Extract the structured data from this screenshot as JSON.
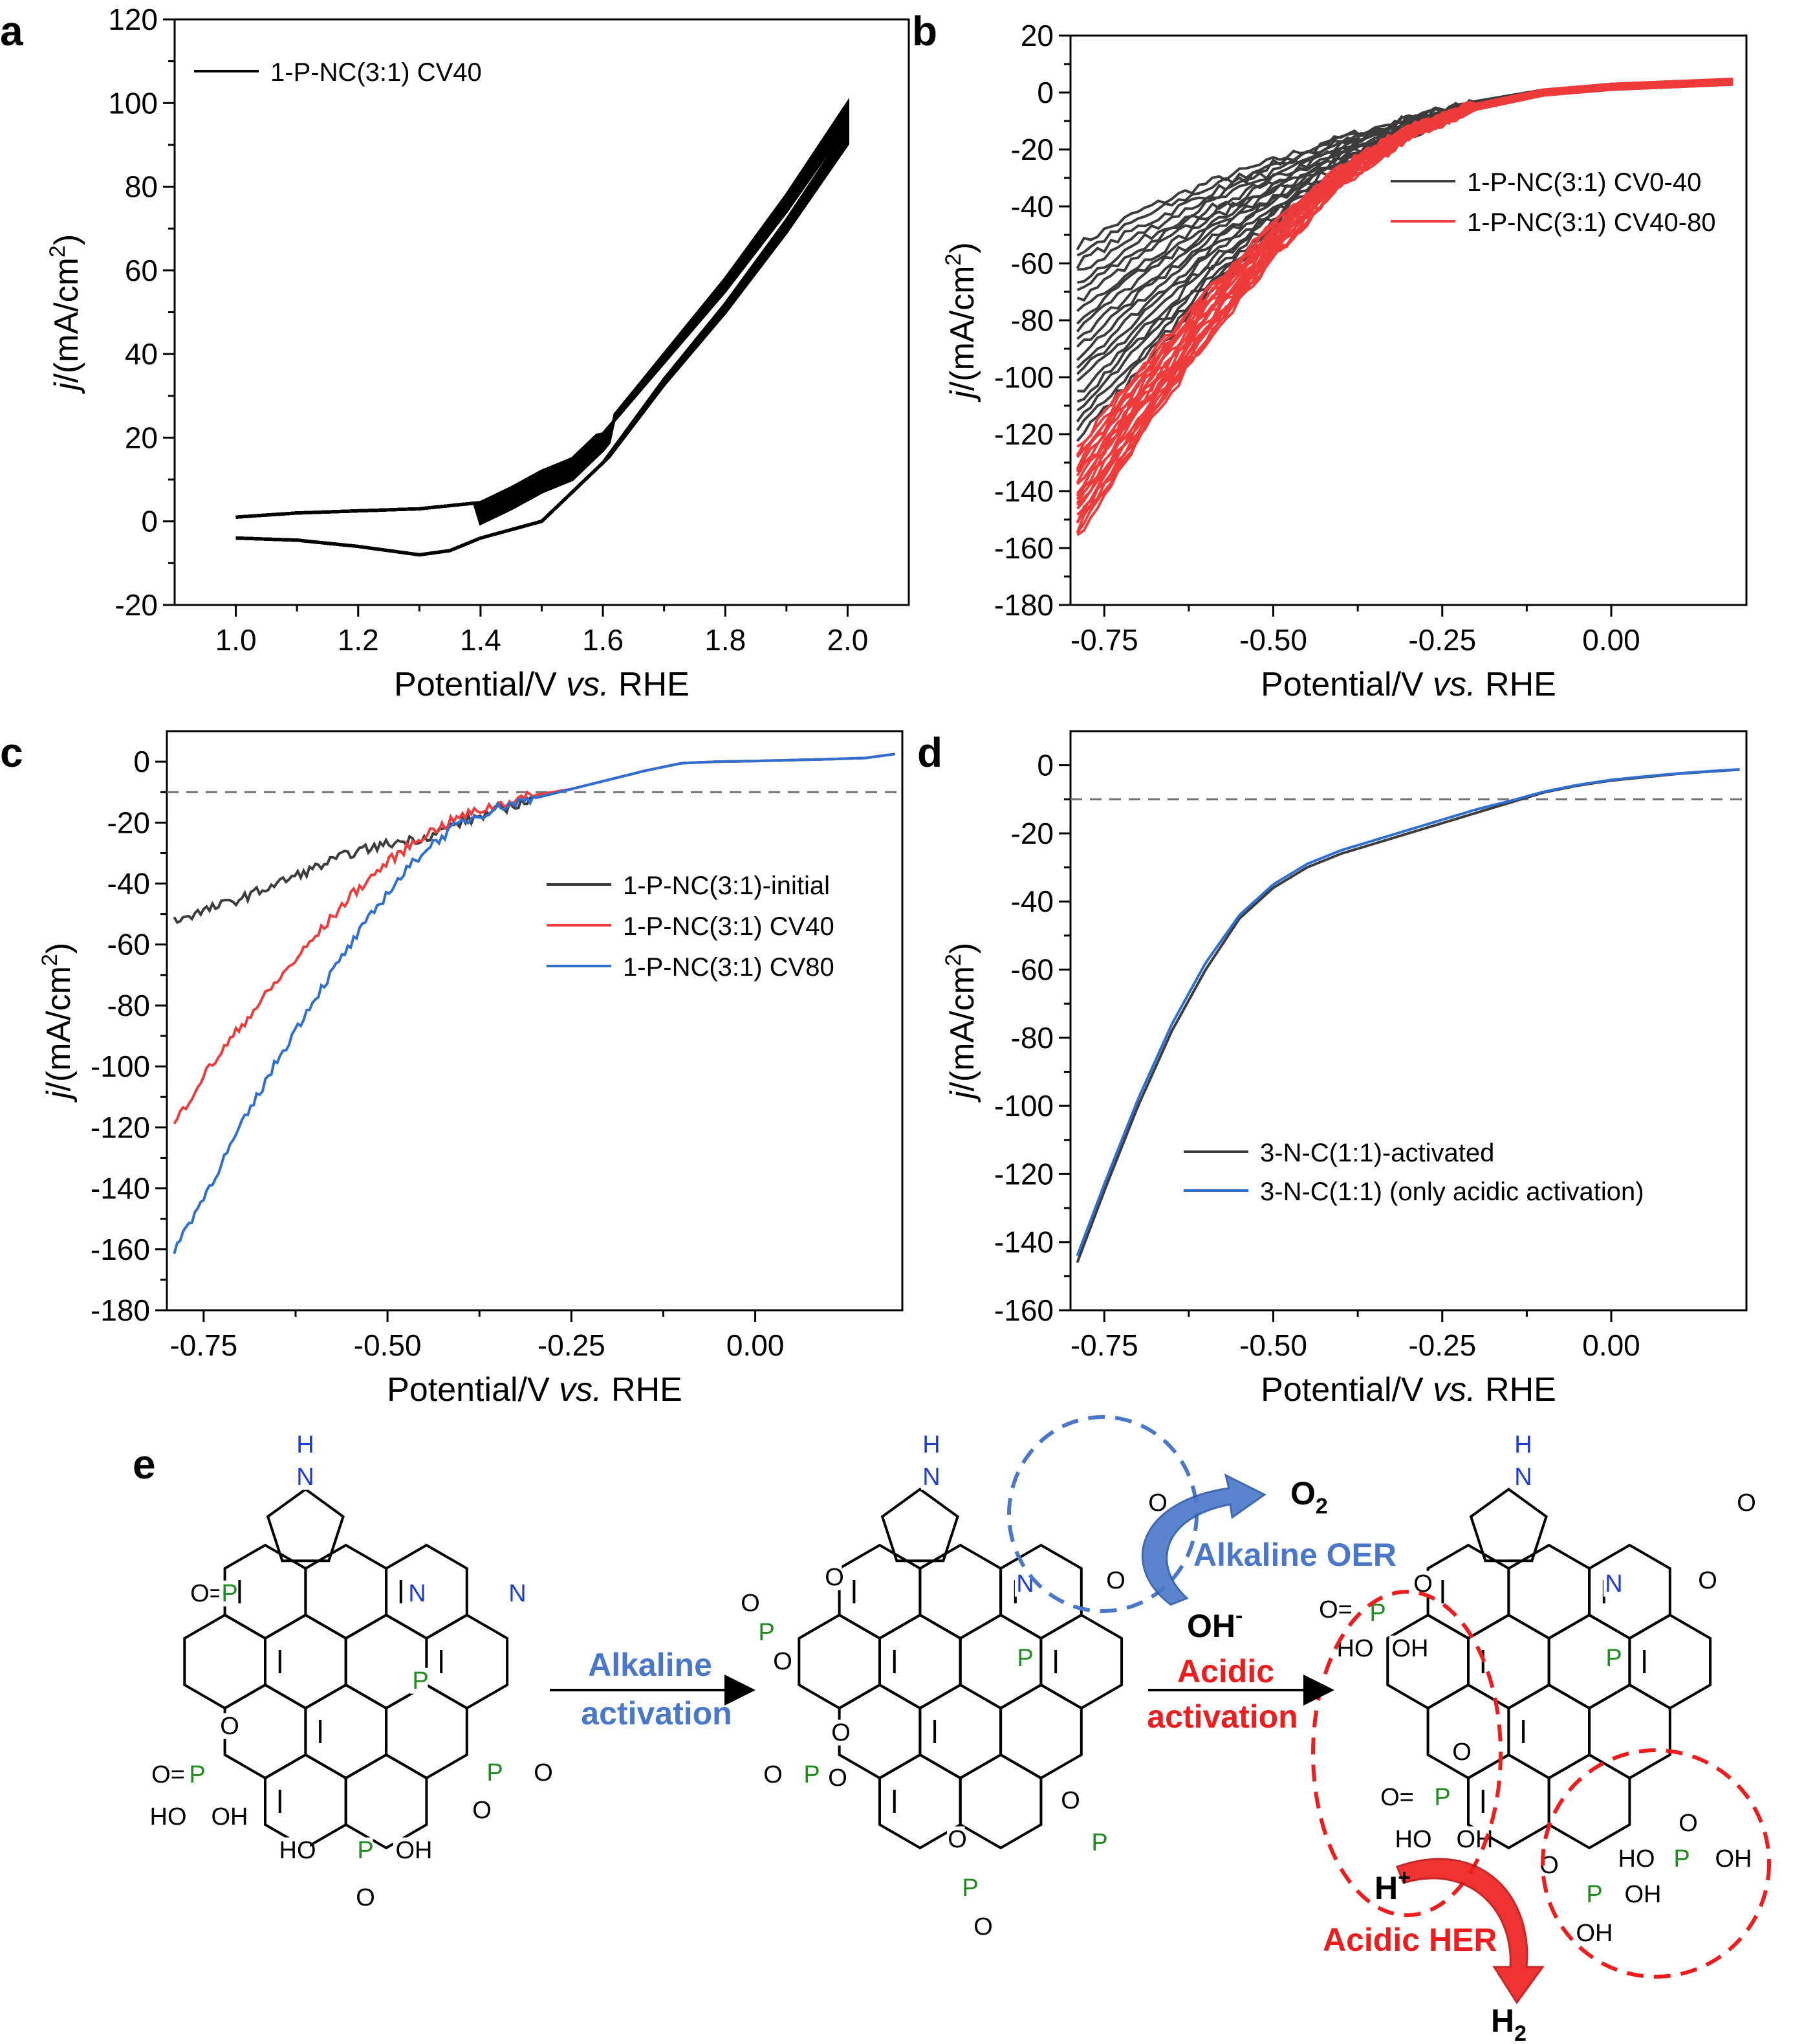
{
  "figure": {
    "panel_labels": [
      "a",
      "b",
      "c",
      "d",
      "e"
    ],
    "colors": {
      "black": "#000000",
      "dark_gray": "#3c3c3c",
      "red": "#ee3b3b",
      "blue": "#2f6fd0",
      "green": "#1e8c1e",
      "n_blue": "#1d3cd6",
      "alk_blue": "#4a77c9",
      "acid_red": "#ee1c1c",
      "dashed_gray": "#707070"
    }
  },
  "chart_data": [
    {
      "panel": "a",
      "type": "line",
      "xlabel": "Potential/V vs. RHE",
      "xlabel_parts": [
        "Potential/V ",
        "vs.",
        " RHE"
      ],
      "ylabel_parts": [
        "j",
        "/(mA/cm",
        "2",
        ")"
      ],
      "xlim": [
        0.9,
        2.1
      ],
      "ylim": [
        -20,
        120
      ],
      "xticks": [
        1.0,
        1.2,
        1.4,
        1.6,
        1.8,
        2.0
      ],
      "xtick_labels": [
        "1.0",
        "1.2",
        "1.4",
        "1.6",
        "1.8",
        "2.0"
      ],
      "yticks": [
        -20,
        0,
        20,
        40,
        60,
        80,
        100,
        120
      ],
      "ytick_labels": [
        "-20",
        "0",
        "20",
        "40",
        "60",
        "80",
        "100",
        "120"
      ],
      "legend": [
        {
          "label": "1-P-NC(3:1) CV40",
          "color": "#000000"
        }
      ],
      "legend_position": "top-left",
      "series": [
        {
          "name": "1-P-NC(3:1) CV40",
          "color": "#000000",
          "anodic": {
            "x": [
              1.0,
              1.1,
              1.2,
              1.3,
              1.4,
              1.45,
              1.5,
              1.55,
              1.6,
              1.7,
              1.8,
              1.9,
              2.0
            ],
            "y": [
              1,
              2,
              2.5,
              3,
              4.5,
              8,
              12,
              15,
              22,
              40,
              58,
              78,
              100
            ]
          },
          "cathodic": {
            "x": [
              2.0,
              1.9,
              1.8,
              1.7,
              1.6,
              1.5,
              1.4,
              1.35,
              1.3,
              1.2,
              1.1,
              1.0
            ],
            "y": [
              94,
              72,
              52,
              34,
              14,
              0,
              -4,
              -7,
              -8,
              -6,
              -4.5,
              -4
            ]
          }
        }
      ]
    },
    {
      "panel": "b",
      "type": "line",
      "xlabel": "Potential/V vs. RHE",
      "xlabel_parts": [
        "Potential/V ",
        "vs.",
        " RHE"
      ],
      "ylabel_parts": [
        "j",
        "/(mA/cm",
        "2",
        ")"
      ],
      "xlim": [
        -0.8,
        0.2
      ],
      "ylim": [
        -180,
        20
      ],
      "xticks": [
        -0.75,
        -0.5,
        -0.25,
        0.0
      ],
      "xtick_labels": [
        "-0.75",
        "-0.50",
        "-0.25",
        "0.00"
      ],
      "yticks": [
        -180,
        -160,
        -140,
        -120,
        -100,
        -80,
        -60,
        -40,
        -20,
        0,
        20
      ],
      "ytick_labels": [
        "-180",
        "-160",
        "-140",
        "-120",
        "-100",
        "-80",
        "-60",
        "-40",
        "-20",
        "0",
        "20"
      ],
      "legend": [
        {
          "label": "1-P-NC(3:1) CV0-40",
          "color": "#3c3c3c"
        },
        {
          "label": "1-P-NC(3:1) CV40-80",
          "color": "#ee3b3b"
        }
      ],
      "legend_position": "center-right",
      "series": [
        {
          "name": "1-P-NC(3:1) CV0-40",
          "color": "#3c3c3c",
          "x": [
            -0.8,
            -0.7,
            -0.6,
            -0.5,
            -0.4,
            -0.3,
            -0.2,
            -0.1,
            0.0,
            0.1,
            0.2
          ],
          "y_upper": [
            -55,
            -42,
            -32,
            -24,
            -16,
            -9,
            -3,
            1,
            3,
            4,
            4
          ],
          "y_lower": [
            -125,
            -98,
            -72,
            -50,
            -30,
            -15,
            -6,
            -1,
            1,
            2,
            3
          ]
        },
        {
          "name": "1-P-NC(3:1) CV40-80",
          "color": "#ee3b3b",
          "x": [
            -0.8,
            -0.7,
            -0.6,
            -0.5,
            -0.4,
            -0.3,
            -0.2,
            -0.1,
            0.0,
            0.1,
            0.2
          ],
          "y_upper": [
            -128,
            -98,
            -70,
            -46,
            -26,
            -12,
            -4,
            1,
            3,
            4,
            5
          ],
          "y_lower": [
            -160,
            -122,
            -88,
            -58,
            -33,
            -16,
            -6,
            -1,
            1,
            2,
            3
          ]
        }
      ]
    },
    {
      "panel": "c",
      "type": "line",
      "xlabel": "Potential/V vs. RHE",
      "xlabel_parts": [
        "Potential/V ",
        "vs.",
        " RHE"
      ],
      "ylabel_parts": [
        "j",
        "/(mA/cm",
        "2",
        ")"
      ],
      "xlim": [
        -0.8,
        0.2
      ],
      "ylim": [
        -180,
        10
      ],
      "xticks": [
        -0.75,
        -0.5,
        -0.25,
        0.0
      ],
      "xtick_labels": [
        "-0.75",
        "-0.50",
        "-0.25",
        "0.00"
      ],
      "yticks": [
        -180,
        -160,
        -140,
        -120,
        -100,
        -80,
        -60,
        -40,
        -20,
        0
      ],
      "ytick_labels": [
        "-180",
        "-160",
        "-140",
        "-120",
        "-100",
        "-80",
        "-60",
        "-40",
        "-20",
        "0"
      ],
      "reference_line_y": -10,
      "legend": [
        {
          "label": "1-P-NC(3:1)-initial",
          "color": "#3c3c3c"
        },
        {
          "label": "1-P-NC(3:1) CV40",
          "color": "#ee3b3b"
        },
        {
          "label": "1-P-NC(3:1) CV80",
          "color": "#2f6fd0"
        }
      ],
      "legend_position": "center-right",
      "series": [
        {
          "name": "1-P-NC(3:1)-initial",
          "color": "#3c3c3c",
          "x": [
            -0.79,
            -0.75,
            -0.7,
            -0.65,
            -0.6,
            -0.55,
            -0.5,
            -0.45,
            -0.4,
            -0.35,
            -0.3,
            -0.25,
            -0.2,
            -0.15,
            -0.1,
            -0.05,
            0.0,
            0.05,
            0.1,
            0.15,
            0.19
          ],
          "y": [
            -52,
            -49,
            -45,
            -40,
            -35,
            -30,
            -27,
            -25,
            -20,
            -16,
            -12,
            -9,
            -6,
            -3,
            -0.5,
            0,
            0.2,
            0.5,
            0.8,
            1.2,
            2.5
          ]
        },
        {
          "name": "1-P-NC(3:1) CV40",
          "color": "#ee3b3b",
          "x": [
            -0.79,
            -0.75,
            -0.7,
            -0.65,
            -0.6,
            -0.55,
            -0.5,
            -0.45,
            -0.4,
            -0.35,
            -0.3,
            -0.25,
            -0.2,
            -0.15,
            -0.1,
            -0.05,
            0.0,
            0.05,
            0.1,
            0.15,
            0.19
          ],
          "y": [
            -119,
            -103,
            -87,
            -72,
            -58,
            -44,
            -33,
            -24,
            -18,
            -14,
            -11,
            -9,
            -6,
            -3,
            -0.5,
            0,
            0.2,
            0.5,
            0.8,
            1.2,
            2.5
          ]
        },
        {
          "name": "1-P-NC(3:1) CV80",
          "color": "#2f6fd0",
          "x": [
            -0.79,
            -0.75,
            -0.7,
            -0.65,
            -0.6,
            -0.55,
            -0.5,
            -0.45,
            -0.4,
            -0.35,
            -0.3,
            -0.25,
            -0.2,
            -0.15,
            -0.1,
            -0.05,
            0.0,
            0.05,
            0.1,
            0.15,
            0.19
          ],
          "y": [
            -160,
            -143,
            -120,
            -98,
            -78,
            -60,
            -43,
            -29,
            -20,
            -15,
            -12,
            -9,
            -6,
            -3,
            -0.5,
            0,
            0.2,
            0.5,
            0.8,
            1.2,
            2.5
          ]
        }
      ]
    },
    {
      "panel": "d",
      "type": "line",
      "xlabel": "Potential/V vs. RHE",
      "xlabel_parts": [
        "Potential/V ",
        "vs.",
        " RHE"
      ],
      "ylabel_parts": [
        "j",
        "/(mA/cm",
        "2",
        ")"
      ],
      "xlim": [
        -0.8,
        0.2
      ],
      "ylim": [
        -160,
        10
      ],
      "xticks": [
        -0.75,
        -0.5,
        -0.25,
        0.0
      ],
      "xtick_labels": [
        "-0.75",
        "-0.50",
        "-0.25",
        "0.00"
      ],
      "yticks": [
        -160,
        -140,
        -120,
        -100,
        -80,
        -60,
        -40,
        -20,
        0
      ],
      "ytick_labels": [
        "-160",
        "-140",
        "-120",
        "-100",
        "-80",
        "-60",
        "-40",
        "-20",
        "0"
      ],
      "reference_line_y": -10,
      "legend": [
        {
          "label": "3-N-C(1:1)-activated",
          "color": "#3c3c3c"
        },
        {
          "label": "3-N-C(1:1) (only acidic activation)",
          "color": "#2f6fd0"
        }
      ],
      "legend_position": "bottom-left",
      "series": [
        {
          "name": "3-N-C(1:1)-activated",
          "color": "#3c3c3c",
          "x": [
            -0.79,
            -0.75,
            -0.7,
            -0.65,
            -0.6,
            -0.55,
            -0.5,
            -0.45,
            -0.4,
            -0.35,
            -0.3,
            -0.25,
            -0.2,
            -0.15,
            -0.1,
            -0.05,
            0.0,
            0.05,
            0.1,
            0.15,
            0.19
          ],
          "y": [
            -146,
            -125,
            -100,
            -78,
            -60,
            -45,
            -36,
            -30,
            -26,
            -23,
            -20,
            -17,
            -14,
            -11,
            -8,
            -6,
            -4.5,
            -3.5,
            -2.5,
            -1.8,
            -1.3
          ]
        },
        {
          "name": "3-N-C(1:1) (only acidic activation)",
          "color": "#2f6fd0",
          "x": [
            -0.79,
            -0.75,
            -0.7,
            -0.65,
            -0.6,
            -0.55,
            -0.5,
            -0.45,
            -0.4,
            -0.35,
            -0.3,
            -0.25,
            -0.2,
            -0.15,
            -0.1,
            -0.05,
            0.0,
            0.05,
            0.1,
            0.15,
            0.19
          ],
          "y": [
            -144,
            -123,
            -98,
            -76,
            -58,
            -44,
            -35,
            -29,
            -25,
            -22,
            -19,
            -16,
            -13,
            -10.5,
            -7.8,
            -5.8,
            -4.3,
            -3.3,
            -2.4,
            -1.7,
            -1.2
          ]
        }
      ]
    }
  ],
  "scheme": {
    "arrow1_line1": "Alkaline",
    "arrow1_line2": "activation",
    "arrow2_line1": "Acidic",
    "arrow2_line2": "activation",
    "o2_main": "O",
    "o2_sub": "2",
    "alkaline_oer": "Alkaline OER",
    "oh_main": "OH",
    "oh_sup": "-",
    "h_main": "H",
    "h_sup": "+",
    "acidic_her": "Acidic HER",
    "h2_main": "H",
    "h2_sub": "2",
    "atom_labels": {
      "nh_h": "H",
      "n": "N",
      "p": "P",
      "o": "O",
      "oh": "OH",
      "ho": "HO",
      "eq_o": "O="
    }
  }
}
